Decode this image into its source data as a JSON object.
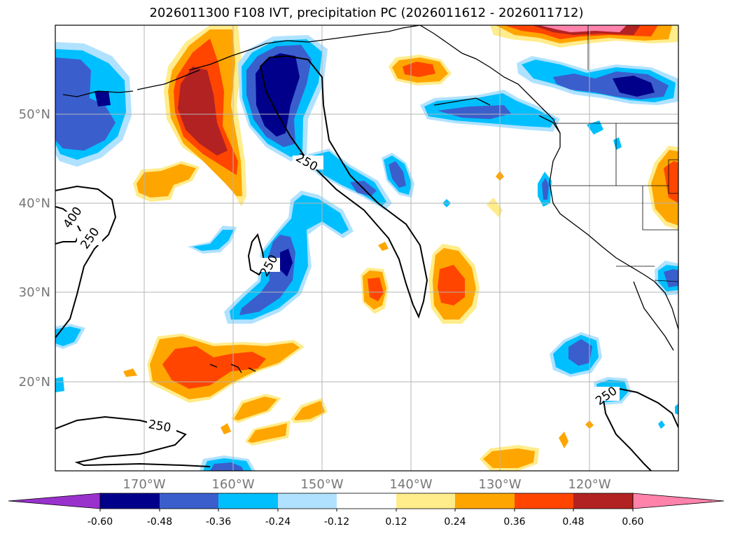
{
  "title": "2026011300 F108 IVT, precipitation PC (2026011612 - 2026011712)",
  "lat_labels": [
    "50°N",
    "40°N",
    "30°N",
    "20°N"
  ],
  "lon_labels": [
    "170°W",
    "160°W",
    "150°W",
    "140°W",
    "130°W",
    "120°W"
  ],
  "contour_labels": [
    "250",
    "400",
    "250",
    "250",
    "250",
    "250"
  ],
  "colorbar": {
    "ticks": [
      "-0.60",
      "-0.48",
      "-0.36",
      "-0.24",
      "-0.12",
      "0.12",
      "0.24",
      "0.36",
      "0.48",
      "0.60"
    ],
    "colors": [
      "#9932cc",
      "#00008b",
      "#3a5fcd",
      "#00bfff",
      "#b0e2ff",
      "#ffffff",
      "#ffec8b",
      "#ffa500",
      "#ff4500",
      "#b22222",
      "#ff82ab"
    ]
  }
}
